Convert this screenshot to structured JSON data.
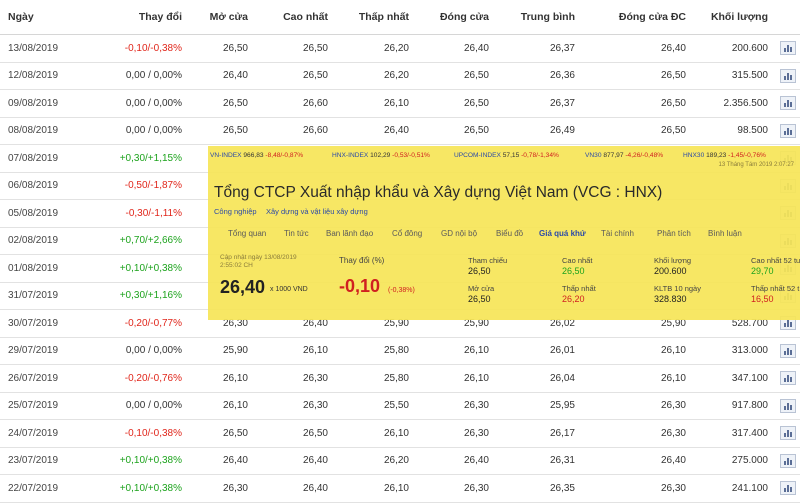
{
  "table": {
    "headers": [
      "Ngày",
      "Thay đổi",
      "Mở cửa",
      "Cao nhất",
      "Thấp nhất",
      "Đóng cửa",
      "Trung bình",
      "Đóng cửa ĐC",
      "Khối lượng"
    ],
    "rows": [
      {
        "date": "13/08/2019",
        "change": "-0,10/-0,38%",
        "dir": "down",
        "open": "26,50",
        "high": "26,50",
        "low": "26,20",
        "close": "26,40",
        "avg": "26,37",
        "adj": "26,40",
        "vol": "200.600"
      },
      {
        "date": "12/08/2019",
        "change": "0,00 / 0,00%",
        "dir": "flat",
        "open": "26,40",
        "high": "26,50",
        "low": "26,20",
        "close": "26,50",
        "avg": "26,36",
        "adj": "26,50",
        "vol": "315.500"
      },
      {
        "date": "09/08/2019",
        "change": "0,00 / 0,00%",
        "dir": "flat",
        "open": "26,50",
        "high": "26,60",
        "low": "26,10",
        "close": "26,50",
        "avg": "26,37",
        "adj": "26,50",
        "vol": "2.356.500"
      },
      {
        "date": "08/08/2019",
        "change": "0,00 / 0,00%",
        "dir": "flat",
        "open": "26,50",
        "high": "26,60",
        "low": "26,40",
        "close": "26,50",
        "avg": "26,49",
        "adj": "26,50",
        "vol": "98.500"
      },
      {
        "date": "07/08/2019",
        "change": "+0,30/+1,15%",
        "dir": "up",
        "open": "",
        "high": "",
        "low": "",
        "close": "",
        "avg": "",
        "adj": "",
        "vol": ""
      },
      {
        "date": "06/08/2019",
        "change": "-0,50/-1,87%",
        "dir": "down",
        "open": "",
        "high": "",
        "low": "",
        "close": "",
        "avg": "",
        "adj": "",
        "vol": ""
      },
      {
        "date": "05/08/2019",
        "change": "-0,30/-1,11%",
        "dir": "down",
        "open": "",
        "high": "",
        "low": "",
        "close": "",
        "avg": "",
        "adj": "",
        "vol": ""
      },
      {
        "date": "02/08/2019",
        "change": "+0,70/+2,66%",
        "dir": "up",
        "open": "",
        "high": "",
        "low": "",
        "close": "",
        "avg": "",
        "adj": "",
        "vol": ""
      },
      {
        "date": "01/08/2019",
        "change": "+0,10/+0,38%",
        "dir": "up",
        "open": "",
        "high": "",
        "low": "",
        "close": "",
        "avg": "",
        "adj": "",
        "vol": ""
      },
      {
        "date": "31/07/2019",
        "change": "+0,30/+1,16%",
        "dir": "up",
        "open": "",
        "high": "",
        "low": "",
        "close": "",
        "avg": "",
        "adj": "",
        "vol": ""
      },
      {
        "date": "30/07/2019",
        "change": "-0,20/-0,77%",
        "dir": "down",
        "open": "26,30",
        "high": "26,40",
        "low": "25,90",
        "close": "25,90",
        "avg": "26,02",
        "adj": "25,90",
        "vol": "528.700"
      },
      {
        "date": "29/07/2019",
        "change": "0,00 / 0,00%",
        "dir": "flat",
        "open": "25,90",
        "high": "26,10",
        "low": "25,80",
        "close": "26,10",
        "avg": "26,01",
        "adj": "26,10",
        "vol": "313.000"
      },
      {
        "date": "26/07/2019",
        "change": "-0,20/-0,76%",
        "dir": "down",
        "open": "26,10",
        "high": "26,30",
        "low": "25,80",
        "close": "26,10",
        "avg": "26,04",
        "adj": "26,10",
        "vol": "347.100"
      },
      {
        "date": "25/07/2019",
        "change": "0,00 / 0,00%",
        "dir": "flat",
        "open": "26,10",
        "high": "26,30",
        "low": "25,50",
        "close": "26,30",
        "avg": "25,95",
        "adj": "26,30",
        "vol": "917.800"
      },
      {
        "date": "24/07/2019",
        "change": "-0,10/-0,38%",
        "dir": "down",
        "open": "26,50",
        "high": "26,50",
        "low": "26,10",
        "close": "26,30",
        "avg": "26,17",
        "adj": "26,30",
        "vol": "317.400"
      },
      {
        "date": "23/07/2019",
        "change": "+0,10/+0,38%",
        "dir": "up",
        "open": "26,40",
        "high": "26,40",
        "low": "26,20",
        "close": "26,40",
        "avg": "26,31",
        "adj": "26,40",
        "vol": "275.000"
      },
      {
        "date": "22/07/2019",
        "change": "+0,10/+0,38%",
        "dir": "up",
        "open": "26,30",
        "high": "26,40",
        "low": "26,10",
        "close": "26,30",
        "avg": "26,35",
        "adj": "26,30",
        "vol": "241.100"
      }
    ]
  },
  "overlay": {
    "ticker": [
      {
        "name": "VN-INDEX",
        "value": "966,83",
        "change": "-8,48/-0,87%"
      },
      {
        "name": "HNX-INDEX",
        "value": "102,29",
        "change": "-0,53/-0,51%"
      },
      {
        "name": "UPCOM-INDEX",
        "value": "57,15",
        "change": "-0,78/-1,34%"
      },
      {
        "name": "VN30",
        "value": "877,97",
        "change": "-4,26/-0,48%"
      },
      {
        "name": "HNX30",
        "value": "189,23",
        "change": "-1,45/-0,76%"
      }
    ],
    "timestamp": "13 Tháng Tám 2019 2:07:27",
    "title": "Tổng CTCP Xuất nhập khẩu và Xây dựng Việt Nam (VCG : HNX)",
    "breadcrumb": [
      "Công nghiệp",
      "Xây dựng và vật liệu xây dựng"
    ],
    "tabs": [
      "Tổng quan",
      "Tin tức",
      "Ban lãnh đạo",
      "Cổ đông",
      "GD nội bộ",
      "Biểu đồ",
      "Giá quá khứ",
      "Tài chính",
      "Phân tích",
      "Bình luận"
    ],
    "active_tab": "Giá quá khứ",
    "update_label": "Cập nhật ngày 13/08/2019",
    "update_time": "2:55:02 CH",
    "price": "26,40",
    "price_unit": "x 1000 VND",
    "change_label": "Thay đổi (%)",
    "change": "-0,10",
    "change_pct": "(-0,38%)",
    "stats": {
      "ref_label": "Tham chiếu",
      "ref": "26,50",
      "high_label": "Cao nhất",
      "high": "26,50",
      "high52_label": "Cao nhất 52 tu",
      "high52": "29,70",
      "open_label": "Mở cửa",
      "open": "26,50",
      "low_label": "Thấp nhất",
      "low": "26,20",
      "low52_label": "Thấp nhất 52 t",
      "low52": "16,50",
      "vol_label": "Khối lượng",
      "vol": "200.600",
      "avgvol_label": "KLTB 10 ngày",
      "avgvol": "328.830"
    }
  }
}
